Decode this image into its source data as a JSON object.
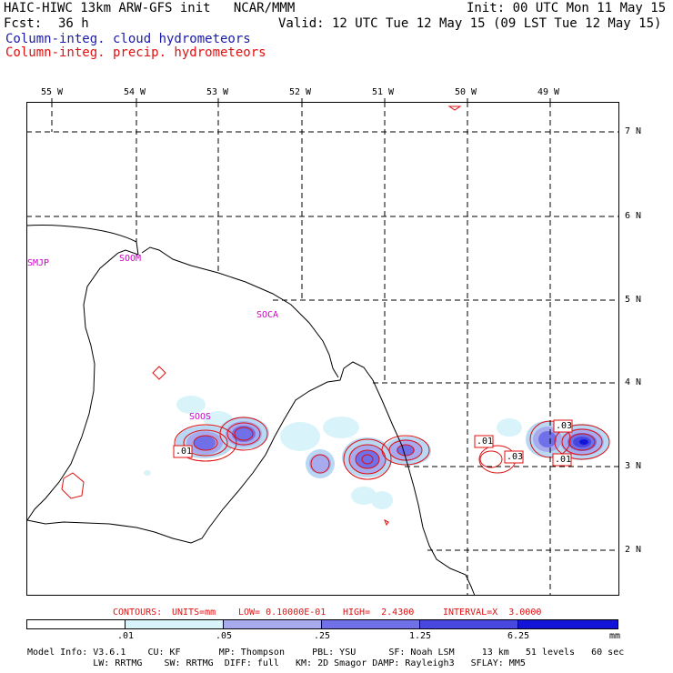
{
  "header": {
    "title": "HAIC-HIWC 13km ARW-GFS init   NCAR/MMM",
    "init": "Init: 00 UTC Mon 11 May 15",
    "fcst_label": "Fcst:",
    "fcst_value": "36 h",
    "valid": "Valid: 12 UTC Tue 12 May 15 (09 LST Tue 12 May 15)",
    "legend_cloud": "Column-integ. cloud hydrometeors",
    "legend_precip": "Column-integ. precip. hydrometeors"
  },
  "colors": {
    "cloud": "#1a1aa8",
    "precip": "#e01010",
    "station": "#cc00cc",
    "shade1": "#d8f4fa",
    "shade2": "#b8d8f4",
    "shade3": "#a8aaee",
    "shade4": "#7070e8",
    "shade5": "#4848e0",
    "shade6": "#1414d8"
  },
  "lon_labels": [
    "55 W",
    "54 W",
    "53 W",
    "52 W",
    "51 W",
    "50 W",
    "49 W"
  ],
  "lat_labels": [
    "7 N",
    "6 N",
    "5 N",
    "4 N",
    "3 N",
    "2 N"
  ],
  "stations": [
    "SMJP",
    "SOOM",
    "SOCA",
    "SOOS"
  ],
  "contour_labels": [
    ".01",
    ".01",
    ".03",
    ".03",
    ".01"
  ],
  "contours_line": {
    "prefix": "CONTOURS:",
    "units": "UNITS=mm",
    "low": "LOW= 0.10000E-01",
    "high": "HIGH=  2.4300",
    "interval": "INTERVAL=X  3.0000"
  },
  "colorbar": {
    "ticks": [
      ".01",
      ".05",
      ".25",
      "1.25",
      "6.25"
    ],
    "unit": "mm"
  },
  "model_info": {
    "line1": "Model Info: V3.6.1    CU: KF       MP: Thompson     PBL: YSU      SF: Noah LSM     13 km   51 levels   60 sec",
    "line2": "            LW: RRTMG    SW: RRTMG  DIFF: full   KM: 2D Smagor DAMP: Rayleigh3   SFLAY: MM5"
  }
}
